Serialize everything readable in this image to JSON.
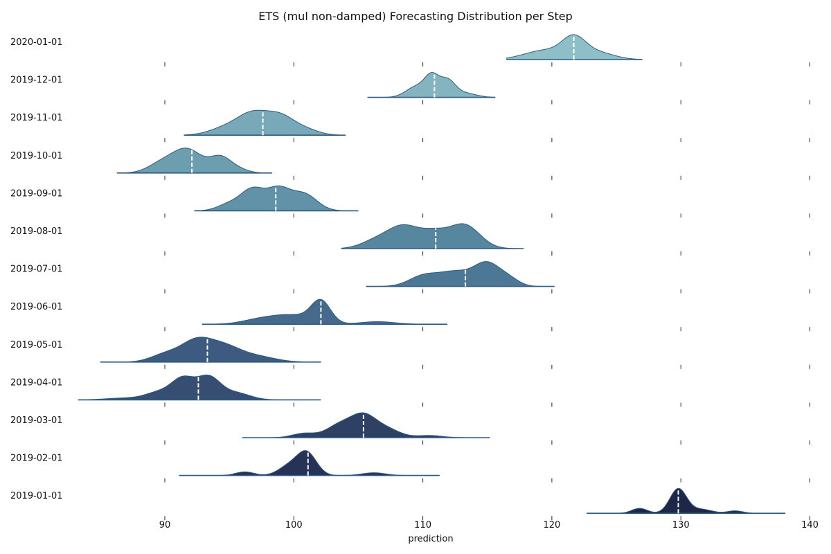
{
  "chart_data": {
    "type": "ridgeline",
    "title": "ETS (mul non-damped) Forecasting Distribution per Step",
    "xlabel": "prediction",
    "xlim": [
      82,
      140
    ],
    "x_ticks": [
      90,
      100,
      110,
      120,
      130,
      140
    ],
    "grid": false,
    "legend": "none",
    "series": [
      {
        "name": "2020-01-01",
        "median": 121.7,
        "range": [
          116.5,
          127.0
        ],
        "peaks": [
          {
            "x": 121.7,
            "h": 1.0,
            "w": 0.9
          },
          {
            "x": 119.5,
            "h": 0.5,
            "w": 1.6
          },
          {
            "x": 123.5,
            "h": 0.38,
            "w": 1.3
          }
        ],
        "color": "#8ebfc6"
      },
      {
        "name": "2019-12-01",
        "median": 110.9,
        "range": [
          105.7,
          115.6
        ],
        "peaks": [
          {
            "x": 110.7,
            "h": 0.9,
            "w": 0.55
          },
          {
            "x": 111.9,
            "h": 0.75,
            "w": 0.6
          },
          {
            "x": 109.5,
            "h": 0.5,
            "w": 0.8
          },
          {
            "x": 113.2,
            "h": 0.2,
            "w": 0.9
          }
        ],
        "color": "#84b4bf"
      },
      {
        "name": "2019-11-01",
        "median": 97.6,
        "range": [
          91.5,
          104.0
        ],
        "peaks": [
          {
            "x": 96.8,
            "h": 0.95,
            "w": 1.2
          },
          {
            "x": 99.0,
            "h": 0.8,
            "w": 1.1
          },
          {
            "x": 94.6,
            "h": 0.3,
            "w": 1.2
          },
          {
            "x": 101.0,
            "h": 0.22,
            "w": 1.0
          }
        ],
        "color": "#78a9b8"
      },
      {
        "name": "2019-10-01",
        "median": 92.1,
        "range": [
          86.3,
          98.3
        ],
        "peaks": [
          {
            "x": 91.7,
            "h": 0.92,
            "w": 1.2
          },
          {
            "x": 94.3,
            "h": 0.55,
            "w": 0.8
          },
          {
            "x": 89.6,
            "h": 0.3,
            "w": 1.0
          },
          {
            "x": 95.6,
            "h": 0.15,
            "w": 0.8
          }
        ],
        "color": "#6d9eb0"
      },
      {
        "name": "2019-09-01",
        "median": 98.6,
        "range": [
          92.3,
          105.0
        ],
        "peaks": [
          {
            "x": 96.8,
            "h": 0.95,
            "w": 0.9
          },
          {
            "x": 98.8,
            "h": 0.95,
            "w": 0.9
          },
          {
            "x": 100.8,
            "h": 0.75,
            "w": 1.0
          },
          {
            "x": 95.0,
            "h": 0.3,
            "w": 0.9
          }
        ],
        "color": "#6192a7"
      },
      {
        "name": "2019-08-01",
        "median": 111.0,
        "range": [
          103.7,
          117.8
        ],
        "peaks": [
          {
            "x": 108.5,
            "h": 0.9,
            "w": 1.3
          },
          {
            "x": 113.2,
            "h": 0.95,
            "w": 1.2
          },
          {
            "x": 110.9,
            "h": 0.5,
            "w": 1.0
          },
          {
            "x": 106.2,
            "h": 0.25,
            "w": 1.1
          }
        ],
        "color": "#57879f"
      },
      {
        "name": "2019-07-01",
        "median": 113.3,
        "range": [
          105.6,
          120.2
        ],
        "peaks": [
          {
            "x": 115.0,
            "h": 1.0,
            "w": 1.0
          },
          {
            "x": 112.5,
            "h": 0.65,
            "w": 1.3
          },
          {
            "x": 110.0,
            "h": 0.45,
            "w": 1.1
          },
          {
            "x": 116.7,
            "h": 0.3,
            "w": 0.8
          }
        ],
        "color": "#4d7895"
      },
      {
        "name": "2019-06-01",
        "median": 102.1,
        "range": [
          92.9,
          111.9
        ],
        "peaks": [
          {
            "x": 102.1,
            "h": 1.0,
            "w": 0.75
          },
          {
            "x": 99.8,
            "h": 0.42,
            "w": 1.6
          },
          {
            "x": 97.2,
            "h": 0.18,
            "w": 1.3
          },
          {
            "x": 106.5,
            "h": 0.12,
            "w": 1.3
          }
        ],
        "color": "#456a8b"
      },
      {
        "name": "2019-05-01",
        "median": 93.3,
        "range": [
          85.0,
          102.1
        ],
        "peaks": [
          {
            "x": 92.4,
            "h": 0.95,
            "w": 1.2
          },
          {
            "x": 94.6,
            "h": 0.7,
            "w": 1.3
          },
          {
            "x": 90.0,
            "h": 0.35,
            "w": 1.1
          },
          {
            "x": 97.2,
            "h": 0.25,
            "w": 1.4
          }
        ],
        "color": "#3d5b80"
      },
      {
        "name": "2019-04-01",
        "median": 92.6,
        "range": [
          83.3,
          102.1
        ],
        "peaks": [
          {
            "x": 91.4,
            "h": 0.9,
            "w": 0.9
          },
          {
            "x": 93.4,
            "h": 0.95,
            "w": 0.9
          },
          {
            "x": 89.5,
            "h": 0.3,
            "w": 1.0
          },
          {
            "x": 95.5,
            "h": 0.3,
            "w": 1.1
          },
          {
            "x": 87.0,
            "h": 0.08,
            "w": 1.5
          }
        ],
        "color": "#354e72"
      },
      {
        "name": "2019-03-01",
        "median": 105.4,
        "range": [
          96.0,
          115.2
        ],
        "peaks": [
          {
            "x": 105.4,
            "h": 1.0,
            "w": 1.0
          },
          {
            "x": 103.5,
            "h": 0.55,
            "w": 1.0
          },
          {
            "x": 107.3,
            "h": 0.35,
            "w": 1.0
          },
          {
            "x": 100.8,
            "h": 0.2,
            "w": 0.9
          },
          {
            "x": 110.5,
            "h": 0.1,
            "w": 1.0
          }
        ],
        "color": "#2e4164"
      },
      {
        "name": "2019-02-01",
        "median": 101.1,
        "range": [
          91.1,
          111.3
        ],
        "peaks": [
          {
            "x": 101.0,
            "h": 1.0,
            "w": 0.75
          },
          {
            "x": 99.6,
            "h": 0.4,
            "w": 0.8
          },
          {
            "x": 96.2,
            "h": 0.16,
            "w": 0.7
          },
          {
            "x": 106.2,
            "h": 0.12,
            "w": 0.9
          }
        ],
        "color": "#263356"
      },
      {
        "name": "2019-01-01",
        "median": 129.8,
        "range": [
          122.7,
          138.1
        ],
        "peaks": [
          {
            "x": 129.8,
            "h": 1.0,
            "w": 0.65
          },
          {
            "x": 126.8,
            "h": 0.2,
            "w": 0.6
          },
          {
            "x": 131.6,
            "h": 0.16,
            "w": 0.8
          },
          {
            "x": 134.2,
            "h": 0.1,
            "w": 0.6
          }
        ],
        "color": "#1e2747"
      }
    ]
  }
}
